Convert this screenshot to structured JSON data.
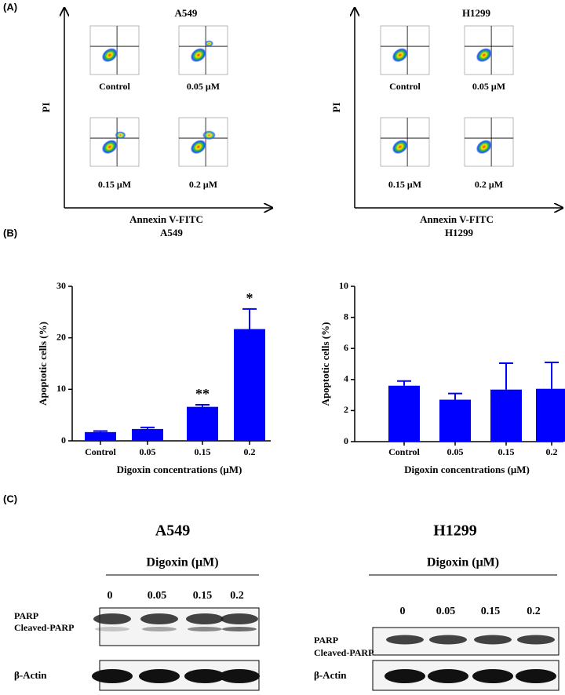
{
  "panel_a": {
    "label": "(A)",
    "plots": [
      {
        "title": "A549",
        "y_label": "PI",
        "x_label": "Annexin V-FITC",
        "conditions": [
          "Control",
          "0.05 μM",
          "0.15 μM",
          "0.2 μM"
        ]
      },
      {
        "title": "H1299",
        "y_label": "PI",
        "x_label": "Annexin V-FITC",
        "conditions": [
          "Control",
          "0.05 μM",
          "0.15 μM",
          "0.2 μM"
        ]
      }
    ]
  },
  "panel_b": {
    "label": "(B)"
  },
  "chart_data": [
    {
      "type": "bar",
      "title": "A549",
      "x_label": "Digoxin concentrations (μM)",
      "y_label": "Apoptotic cells (%)",
      "categories": [
        "Control",
        "0.05",
        "0.15",
        "0.2"
      ],
      "values": [
        1.7,
        2.3,
        6.6,
        21.7
      ],
      "errors": [
        0.2,
        0.3,
        0.4,
        3.9
      ],
      "color": "#0000ff",
      "ylim": [
        0,
        30
      ],
      "yticks": [
        0,
        10,
        20,
        30
      ],
      "annotations": [
        {
          "category": "0.15",
          "text": "**"
        },
        {
          "category": "0.2",
          "text": "*"
        }
      ]
    },
    {
      "type": "bar",
      "title": "H1299",
      "x_label": "Digoxin concentrations (μM)",
      "y_label": "Apoptotic cells (%)",
      "categories": [
        "Control",
        "0.05",
        "0.15",
        "0.2"
      ],
      "values": [
        3.6,
        2.7,
        3.35,
        3.4
      ],
      "errors": [
        0.3,
        0.4,
        1.7,
        1.7
      ],
      "color": "#0000ff",
      "ylim": [
        0,
        10
      ],
      "yticks": [
        0,
        2,
        4,
        6,
        8,
        10
      ]
    }
  ],
  "panel_c": {
    "label": "(C)",
    "blots": [
      {
        "title": "A549",
        "treatment": "Digoxin (μM)",
        "lanes": [
          "0",
          "0.05",
          "0.15",
          "0.2"
        ],
        "rows": [
          "PARP",
          "Cleaved-PARP",
          "β-Actin"
        ]
      },
      {
        "title": "H1299",
        "treatment": "Digoxin (μM)",
        "lanes": [
          "0",
          "0.05",
          "0.15",
          "0.2"
        ],
        "rows": [
          "PARP",
          "Cleaved-PARP",
          "β-Actin"
        ]
      }
    ]
  }
}
